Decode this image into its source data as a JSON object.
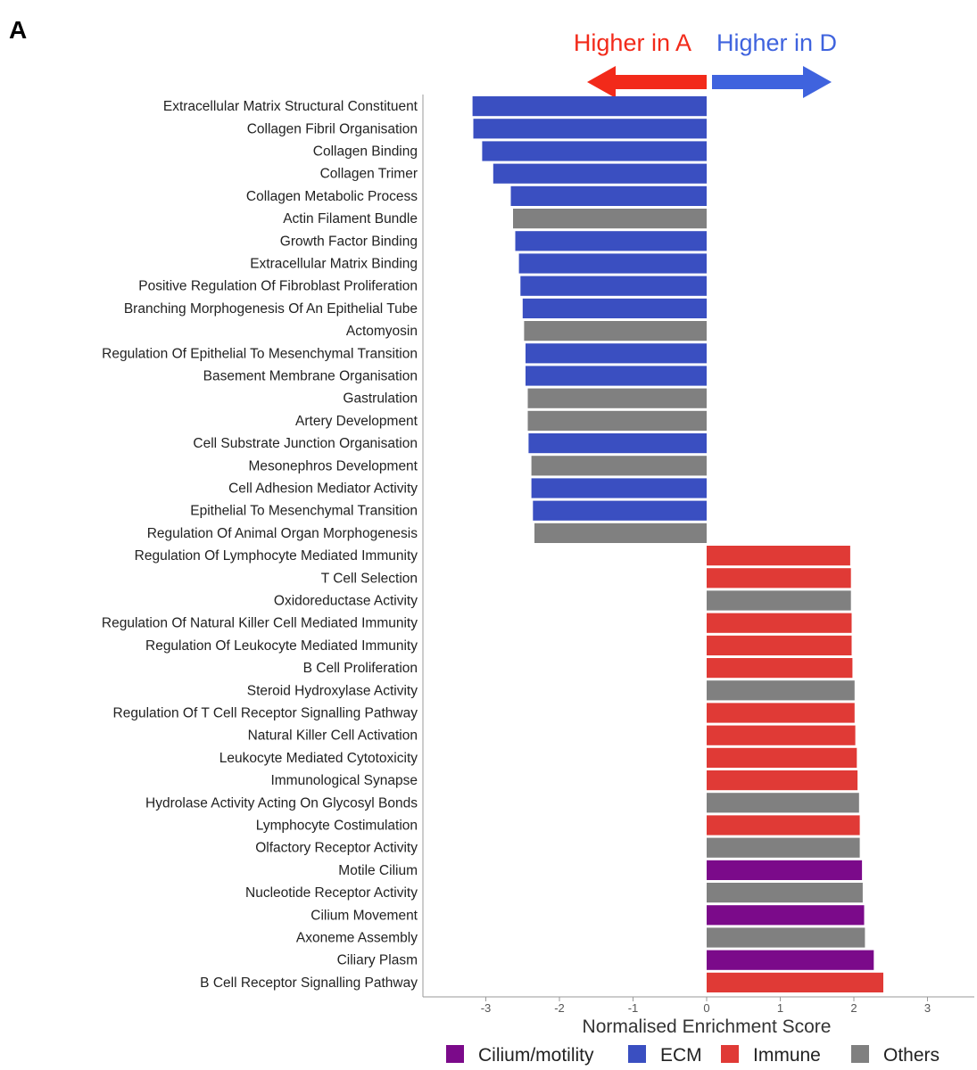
{
  "panel_label": "A",
  "direction": {
    "left_label": "Higher in A",
    "right_label": "Higher in D",
    "left_color": "#f22a1a",
    "right_color": "#3f63de"
  },
  "chart_data": {
    "type": "bar",
    "orientation": "horizontal",
    "xlabel": "Normalised Enrichment Score",
    "ylabel": "",
    "xlim": [
      -3.8,
      3.6
    ],
    "xticks": [
      -3,
      -2,
      -1,
      0,
      1,
      2,
      3
    ],
    "group_colors": {
      "Cilium/motility": "#7b0a8a",
      "ECM": "#3a4fc1",
      "Immune": "#e03a36",
      "Others": "#808080"
    },
    "legend": [
      "Cilium/motility",
      "ECM",
      "Immune",
      "Others"
    ],
    "bars": [
      {
        "label": "Extracellular Matrix Structural Constituent",
        "value": -3.18,
        "group": "ECM"
      },
      {
        "label": "Collagen Fibril Organisation",
        "value": -3.17,
        "group": "ECM"
      },
      {
        "label": "Collagen Binding",
        "value": -3.05,
        "group": "ECM"
      },
      {
        "label": "Collagen Trimer",
        "value": -2.9,
        "group": "ECM"
      },
      {
        "label": "Collagen Metabolic Process",
        "value": -2.66,
        "group": "ECM"
      },
      {
        "label": "Actin Filament Bundle",
        "value": -2.63,
        "group": "Others"
      },
      {
        "label": "Growth Factor Binding",
        "value": -2.6,
        "group": "ECM"
      },
      {
        "label": "Extracellular Matrix Binding",
        "value": -2.55,
        "group": "ECM"
      },
      {
        "label": "Positive Regulation Of Fibroblast Proliferation",
        "value": -2.53,
        "group": "ECM"
      },
      {
        "label": "Branching Morphogenesis Of An Epithelial Tube",
        "value": -2.5,
        "group": "ECM"
      },
      {
        "label": "Actomyosin",
        "value": -2.48,
        "group": "Others"
      },
      {
        "label": "Regulation Of Epithelial To Mesenchymal Transition",
        "value": -2.46,
        "group": "ECM"
      },
      {
        "label": "Basement Membrane Organisation",
        "value": -2.46,
        "group": "ECM"
      },
      {
        "label": "Gastrulation",
        "value": -2.43,
        "group": "Others"
      },
      {
        "label": "Artery Development",
        "value": -2.43,
        "group": "Others"
      },
      {
        "label": "Cell Substrate Junction Organisation",
        "value": -2.42,
        "group": "ECM"
      },
      {
        "label": "Mesonephros Development",
        "value": -2.38,
        "group": "Others"
      },
      {
        "label": "Cell Adhesion Mediator Activity",
        "value": -2.38,
        "group": "ECM"
      },
      {
        "label": "Epithelial To Mesenchymal Transition",
        "value": -2.36,
        "group": "ECM"
      },
      {
        "label": "Regulation Of Animal Organ Morphogenesis",
        "value": -2.34,
        "group": "Others"
      },
      {
        "label": "Regulation Of Lymphocyte Mediated Immunity",
        "value": 1.95,
        "group": "Immune"
      },
      {
        "label": "T Cell Selection",
        "value": 1.96,
        "group": "Immune"
      },
      {
        "label": "Oxidoreductase Activity",
        "value": 1.96,
        "group": "Others"
      },
      {
        "label": "Regulation Of Natural Killer Cell Mediated Immunity",
        "value": 1.97,
        "group": "Immune"
      },
      {
        "label": "Regulation Of Leukocyte Mediated Immunity",
        "value": 1.97,
        "group": "Immune"
      },
      {
        "label": "B Cell Proliferation",
        "value": 1.98,
        "group": "Immune"
      },
      {
        "label": "Steroid Hydroxylase Activity",
        "value": 2.01,
        "group": "Others"
      },
      {
        "label": "Regulation Of T Cell Receptor Signalling Pathway",
        "value": 2.01,
        "group": "Immune"
      },
      {
        "label": "Natural Killer Cell Activation",
        "value": 2.02,
        "group": "Immune"
      },
      {
        "label": "Leukocyte Mediated Cytotoxicity",
        "value": 2.04,
        "group": "Immune"
      },
      {
        "label": "Immunological Synapse",
        "value": 2.05,
        "group": "Immune"
      },
      {
        "label": "Hydrolase Activity Acting On Glycosyl Bonds",
        "value": 2.07,
        "group": "Others"
      },
      {
        "label": "Lymphocyte Costimulation",
        "value": 2.08,
        "group": "Immune"
      },
      {
        "label": "Olfactory Receptor Activity",
        "value": 2.08,
        "group": "Others"
      },
      {
        "label": "Motile Cilium",
        "value": 2.11,
        "group": "Cilium/motility"
      },
      {
        "label": "Nucleotide Receptor Activity",
        "value": 2.12,
        "group": "Others"
      },
      {
        "label": "Cilium Movement",
        "value": 2.14,
        "group": "Cilium/motility"
      },
      {
        "label": "Axoneme Assembly",
        "value": 2.15,
        "group": "Others"
      },
      {
        "label": "Ciliary Plasm",
        "value": 2.27,
        "group": "Cilium/motility"
      },
      {
        "label": "B Cell Receptor Signalling Pathway",
        "value": 2.4,
        "group": "Immune"
      }
    ]
  }
}
